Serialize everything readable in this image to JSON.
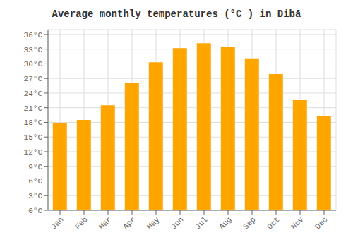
{
  "chart_data": {
    "type": "bar",
    "title": "Average monthly temperatures (°C ) in Dibā",
    "categories": [
      "Jan",
      "Feb",
      "Mar",
      "Apr",
      "May",
      "Jun",
      "Jul",
      "Aug",
      "Sep",
      "Oct",
      "Nov",
      "Dec"
    ],
    "values": [
      17.9,
      18.5,
      21.5,
      26.1,
      30.3,
      33.2,
      34.2,
      33.4,
      31.1,
      27.9,
      22.7,
      19.3
    ],
    "color": "#FFA500",
    "ylim": [
      0,
      37
    ],
    "yticks": [
      {
        "value": 0,
        "label": "0°C"
      },
      {
        "value": 3,
        "label": "3°C"
      },
      {
        "value": 6,
        "label": "6°C"
      },
      {
        "value": 9,
        "label": "9°C"
      },
      {
        "value": 12,
        "label": "12°C"
      },
      {
        "value": 15,
        "label": "15°C"
      },
      {
        "value": 18,
        "label": "18°C"
      },
      {
        "value": 21,
        "label": "21°C"
      },
      {
        "value": 24,
        "label": "24°C"
      },
      {
        "value": 27,
        "label": "27°C"
      },
      {
        "value": 30,
        "label": "30°C"
      },
      {
        "value": 33,
        "label": "33°C"
      },
      {
        "value": 36,
        "label": "36°C"
      }
    ],
    "grid": true
  }
}
